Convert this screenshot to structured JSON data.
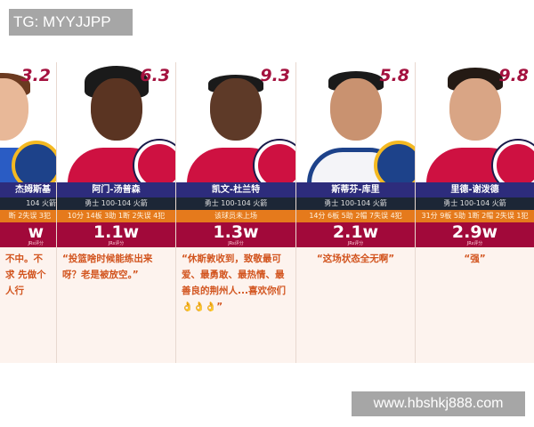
{
  "watermark_top": "TG: MYYJJPP",
  "watermark_bottom": "www.hbshkj888.com",
  "score_label": "JRs评分",
  "colors": {
    "name_bar": "#2d2c7c",
    "team_bar": "#1c2636",
    "stats_bar": "#e57a1c",
    "score_bar": "#a1093a",
    "rating": "#a4123f",
    "quote": "#d2541e"
  },
  "players": [
    {
      "rating": "3.2",
      "name": "杰姆斯基",
      "team": "104 火箭",
      "stats": "断 2失误 3犯",
      "score": "w",
      "quote": "不中。不求 先做个人行",
      "team_logo": "warriors-logo-icon"
    },
    {
      "rating": "6.3",
      "name": "阿门-汤普森",
      "team": "勇士 100-104 火箭",
      "stats": "10分 14板 3助 1断 2失误 4犯",
      "score": "1.1w",
      "quote": "“投篮啥时候能练出来呀？老是被放空。”",
      "team_logo": "rockets-logo-icon"
    },
    {
      "rating": "9.3",
      "name": "凯文-杜兰特",
      "team": "勇士 100-104 火箭",
      "stats": "该球员未上场",
      "score": "1.3w",
      "quote": "“休斯敦收到，致敬最可爱、最勇敢、最热情、最善良的荆州人...喜欢你们👌👌👌”",
      "team_logo": "rockets-logo-icon"
    },
    {
      "rating": "5.8",
      "name": "斯蒂芬-库里",
      "team": "勇士 100-104 火箭",
      "stats": "14分 6板 5助 2帽 7失误 4犯",
      "score": "2.1w",
      "quote": "“这场状态全无啊”",
      "team_logo": "warriors-logo-icon"
    },
    {
      "rating": "9.8",
      "name": "里德-谢泼德",
      "team": "勇士 100-104 火箭",
      "stats": "31分 9板 5助 1断 2帽 2失误 1犯",
      "score": "2.9w",
      "quote": "“强”",
      "team_logo": "rockets-logo-icon"
    }
  ]
}
